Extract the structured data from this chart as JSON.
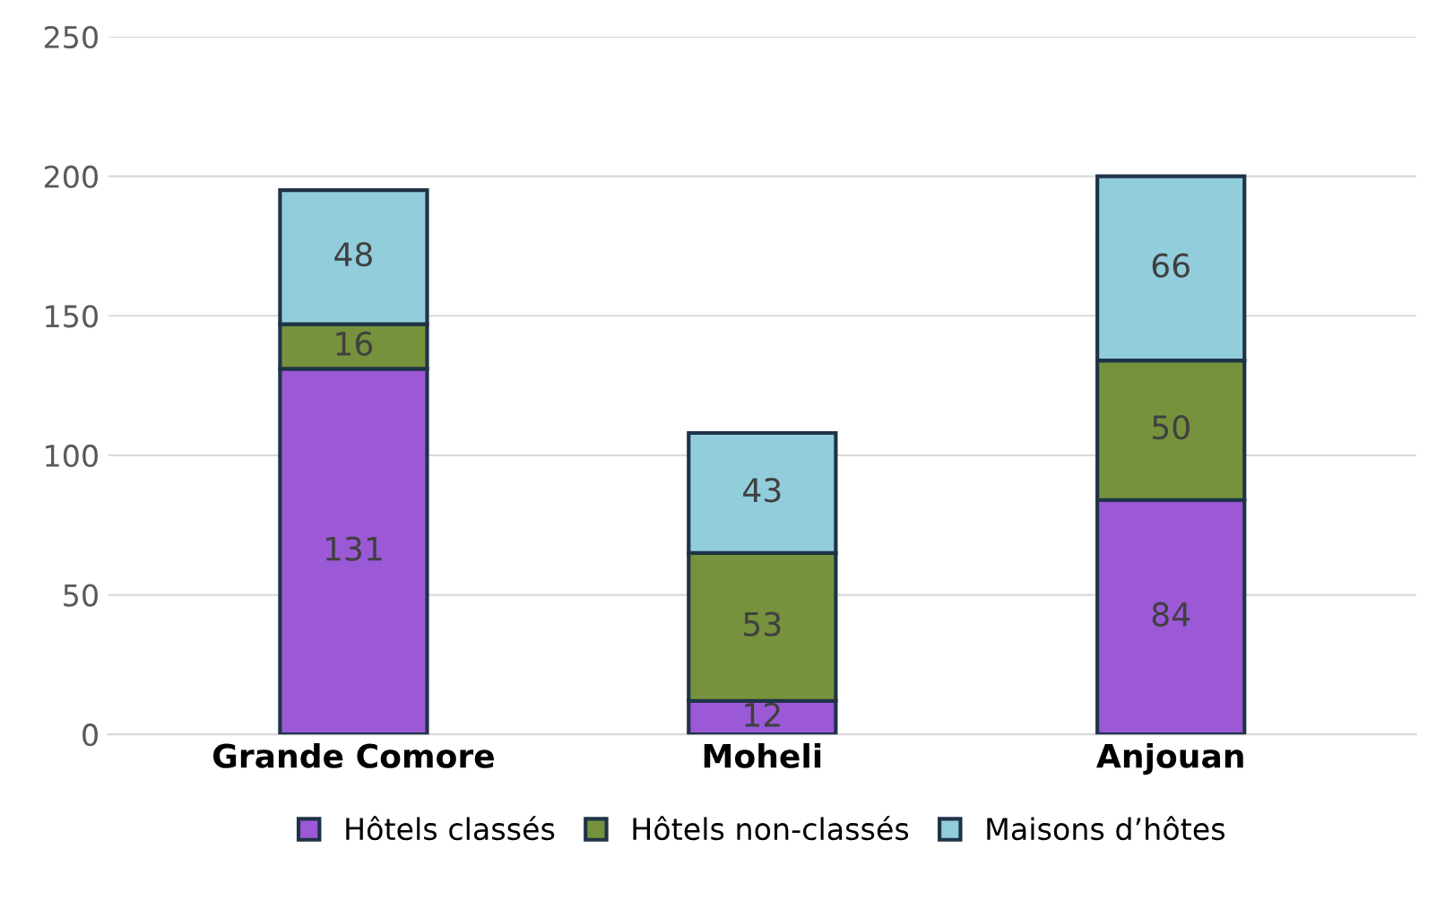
{
  "chart_data": {
    "type": "bar",
    "stacked": true,
    "categories": [
      "Grande Comore",
      "Moheli",
      "Anjouan"
    ],
    "series": [
      {
        "name": "Hôtels classés",
        "color": "#9b59d6",
        "values": [
          131,
          12,
          84
        ]
      },
      {
        "name": "Hôtels non-classés",
        "color": "#76923c",
        "values": [
          16,
          53,
          50
        ]
      },
      {
        "name": "Maisons d’hôtes",
        "color": "#92cddc",
        "values": [
          48,
          43,
          66
        ]
      }
    ],
    "ylim": [
      0,
      250
    ],
    "yticks": [
      0,
      50,
      100,
      150,
      200,
      250
    ],
    "grid": "y",
    "legend": "bottom",
    "data_labels": true
  }
}
